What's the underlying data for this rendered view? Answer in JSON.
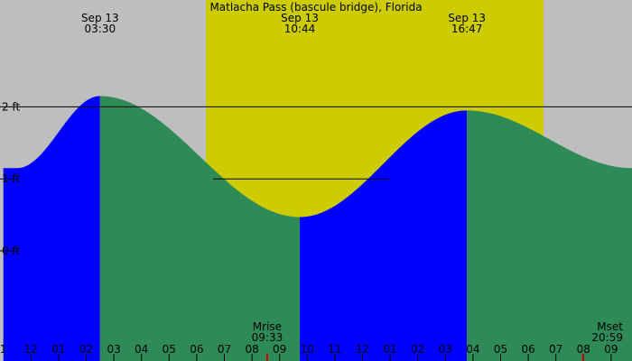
{
  "chart_data": {
    "type": "area",
    "title": "Matlacha Pass (bascule bridge), Florida",
    "xlabel": "",
    "ylabel": "",
    "x_range_hours": [
      0.5,
      22.75
    ],
    "y_range_ft": [
      -1.53,
      3.48
    ],
    "grid": false,
    "ticks": {
      "hours": [
        1,
        2,
        3,
        4,
        5,
        6,
        7,
        8,
        9,
        10,
        11,
        12,
        13,
        14,
        15,
        16,
        17,
        18,
        19,
        20,
        21,
        22
      ],
      "labels": [
        "1",
        "12",
        "01",
        "02",
        "03",
        "04",
        "05",
        "06",
        "07",
        "08",
        "09",
        "10",
        "11",
        "12",
        "01",
        "02",
        "03",
        "04",
        "05",
        "06",
        "07",
        "08",
        "09"
      ],
      "label_hours": [
        0,
        1,
        2,
        3,
        4,
        5,
        6,
        7,
        8,
        9,
        10,
        11,
        12,
        13,
        14,
        15,
        16,
        17,
        18,
        19,
        20,
        21,
        22
      ]
    },
    "y_ticks": [
      {
        "value": 2,
        "label": "2 ft"
      },
      {
        "value": 1,
        "label": "1 ft"
      },
      {
        "value": 0,
        "label": "0 ft"
      }
    ],
    "extremes": [
      {
        "type": "high",
        "date": "Sep 13",
        "time": "03:30",
        "hour": 3.5,
        "height": 2.15
      },
      {
        "type": "low",
        "date": "Sep 13",
        "time": "10:44",
        "hour": 10.73,
        "height": 0.47
      },
      {
        "type": "high",
        "date": "Sep 13",
        "time": "16:47",
        "hour": 16.78,
        "height": 1.95
      }
    ],
    "tide_points": [
      {
        "hour": 0.5,
        "height": 1.15
      },
      {
        "hour": 3.5,
        "height": 2.15
      },
      {
        "hour": 10.73,
        "height": 0.47
      },
      {
        "hour": 16.78,
        "height": 1.95
      },
      {
        "hour": 22.75,
        "height": 1.15
      }
    ],
    "daylight": {
      "start_hour": 7.33,
      "end_hour": 19.55
    },
    "moon": [
      {
        "label": "Mrise",
        "time": "09:33",
        "hour": 9.55
      },
      {
        "label": "Mset",
        "time": "20:59",
        "hour": 20.98
      }
    ],
    "colors": {
      "night": "#bebebe",
      "day": "#cccc00",
      "rising": "#0000ff",
      "falling": "#2e8b57",
      "line": "#000000",
      "moon_marker": "#cc0000"
    }
  }
}
